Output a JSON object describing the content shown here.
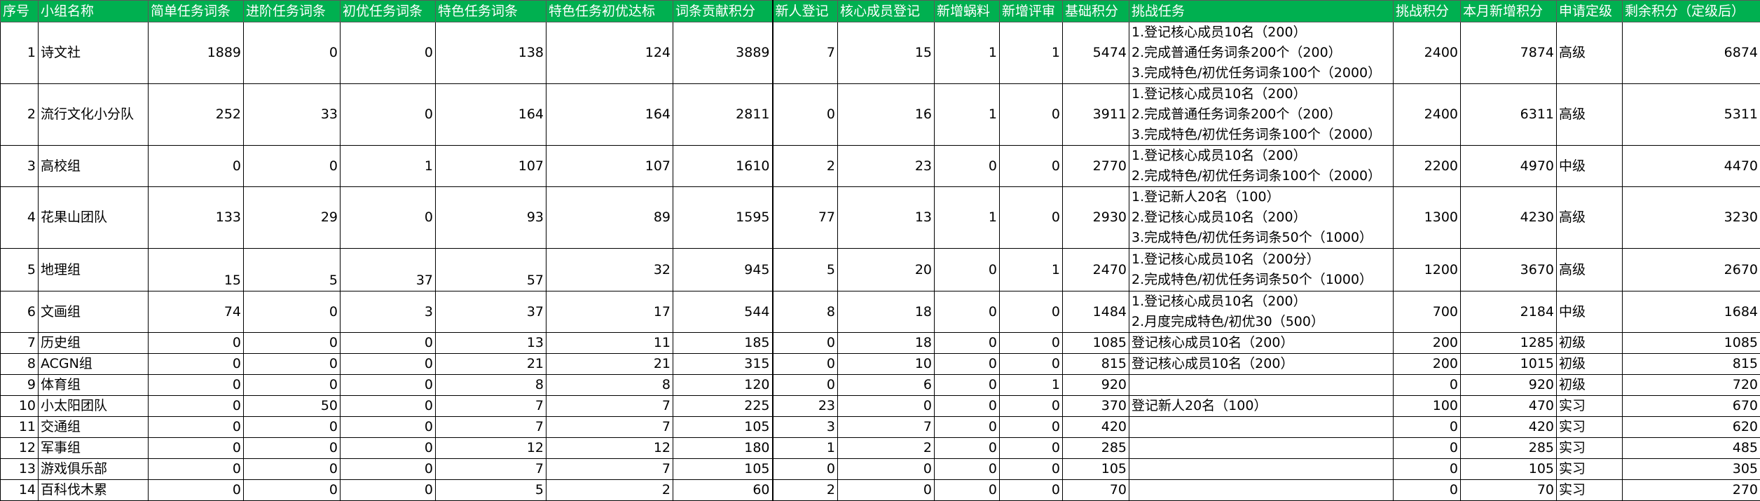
{
  "headers": [
    "序号",
    "小组名称",
    "简单任务词条",
    "进阶任务词条",
    "初优任务词条",
    "特色任务词条",
    "特色任务初优达标",
    "词条贡献积分",
    "新人登记",
    "核心成员登记",
    "新增蜗料",
    "新增评审",
    "基础积分",
    "挑战任务",
    "挑战积分",
    "本月新增积分",
    "申请定级",
    "剩余积分（定级后）"
  ],
  "rows": [
    {
      "no": "1",
      "name": "诗文社",
      "simple": "1889",
      "advanced": "0",
      "initial": "0",
      "special": "138",
      "special_ok": "124",
      "contrib": "3889",
      "newbie": "7",
      "core": "15",
      "snail": "1",
      "review": "1",
      "base": "5474",
      "tasks": [
        "1.登记核心成员10名（200）",
        "2.完成普通任务词条200个（200）",
        "3.完成特色/初优任务词条100个（2000）"
      ],
      "challenge": "2400",
      "month": "7874",
      "level": "高级",
      "remain": "6874"
    },
    {
      "no": "2",
      "name": "流行文化小分队",
      "simple": "252",
      "advanced": "33",
      "initial": "0",
      "special": "164",
      "special_ok": "164",
      "contrib": "2811",
      "newbie": "0",
      "core": "16",
      "snail": "1",
      "review": "0",
      "base": "3911",
      "tasks": [
        "1.登记核心成员10名（200）",
        "2.完成普通任务词条200个（200）",
        "3.完成特色/初优任务词条100个（2000）"
      ],
      "challenge": "2400",
      "month": "6311",
      "level": "高级",
      "remain": "5311"
    },
    {
      "no": "3",
      "name": "高校组",
      "simple": "0",
      "advanced": "0",
      "initial": "1",
      "special": "107",
      "special_ok": "107",
      "contrib": "1610",
      "newbie": "2",
      "core": "23",
      "snail": "0",
      "review": "0",
      "base": "2770",
      "tasks": [
        "1.登记核心成员10名（200）",
        "2.完成特色/初优任务词条100个（2000）"
      ],
      "challenge": "2200",
      "month": "4970",
      "level": "中级",
      "remain": "4470"
    },
    {
      "no": "4",
      "name": "花果山团队",
      "simple": "133",
      "advanced": "29",
      "initial": "0",
      "special": "93",
      "special_ok": "89",
      "contrib": "1595",
      "newbie": "77",
      "core": "13",
      "snail": "1",
      "review": "0",
      "base": "2930",
      "tasks": [
        "1.登记新人20名（100）",
        "2.登记核心成员10名（200）",
        "3.完成特色/初优任务词条50个（1000）"
      ],
      "challenge": "1300",
      "month": "4230",
      "level": "高级",
      "remain": "3230"
    },
    {
      "no": "5",
      "name": "地理组",
      "simple": "15",
      "advanced": "5",
      "initial": "37",
      "special": "57",
      "special_ok": "32",
      "contrib": "945",
      "newbie": "5",
      "core": "20",
      "snail": "0",
      "review": "1",
      "base": "2470",
      "tasks": [
        "1.登记核心成员10名（200分）",
        "2.完成特色/初优任务词条50个（1000）"
      ],
      "challenge": "1200",
      "month": "3670",
      "level": "高级",
      "remain": "2670"
    },
    {
      "no": "6",
      "name": "文画组",
      "simple": "74",
      "advanced": "0",
      "initial": "3",
      "special": "37",
      "special_ok": "17",
      "contrib": "544",
      "newbie": "8",
      "core": "18",
      "snail": "0",
      "review": "0",
      "base": "1484",
      "tasks": [
        "1.登记核心成员10名（200）",
        "2.月度完成特色/初优30（500）"
      ],
      "challenge": "700",
      "month": "2184",
      "level": "中级",
      "remain": "1684"
    },
    {
      "no": "7",
      "name": "历史组",
      "simple": "0",
      "advanced": "0",
      "initial": "0",
      "special": "13",
      "special_ok": "11",
      "contrib": "185",
      "newbie": "0",
      "core": "18",
      "snail": "0",
      "review": "0",
      "base": "1085",
      "tasks": [
        "登记核心成员10名（200）"
      ],
      "challenge": "200",
      "month": "1285",
      "level": "初级",
      "remain": "1085"
    },
    {
      "no": "8",
      "name": "ACGN组",
      "simple": "0",
      "advanced": "0",
      "initial": "0",
      "special": "21",
      "special_ok": "21",
      "contrib": "315",
      "newbie": "0",
      "core": "10",
      "snail": "0",
      "review": "0",
      "base": "815",
      "tasks": [
        "登记核心成员10名（200）"
      ],
      "challenge": "200",
      "month": "1015",
      "level": "初级",
      "remain": "815"
    },
    {
      "no": "9",
      "name": "体育组",
      "simple": "0",
      "advanced": "0",
      "initial": "0",
      "special": "8",
      "special_ok": "8",
      "contrib": "120",
      "newbie": "0",
      "core": "6",
      "snail": "0",
      "review": "1",
      "base": "920",
      "tasks": [],
      "challenge": "0",
      "month": "920",
      "level": "初级",
      "remain": "720"
    },
    {
      "no": "10",
      "name": "小太阳团队",
      "simple": "0",
      "advanced": "50",
      "initial": "0",
      "special": "7",
      "special_ok": "7",
      "contrib": "225",
      "newbie": "23",
      "core": "0",
      "snail": "0",
      "review": "0",
      "base": "370",
      "tasks": [
        "登记新人20名（100）"
      ],
      "challenge": "100",
      "month": "470",
      "level": "实习",
      "remain": "670"
    },
    {
      "no": "11",
      "name": "交通组",
      "simple": "0",
      "advanced": "0",
      "initial": "0",
      "special": "7",
      "special_ok": "7",
      "contrib": "105",
      "newbie": "3",
      "core": "7",
      "snail": "0",
      "review": "0",
      "base": "420",
      "tasks": [],
      "challenge": "0",
      "month": "420",
      "level": "实习",
      "remain": "620"
    },
    {
      "no": "12",
      "name": "军事组",
      "simple": "0",
      "advanced": "0",
      "initial": "0",
      "special": "12",
      "special_ok": "12",
      "contrib": "180",
      "newbie": "1",
      "core": "2",
      "snail": "0",
      "review": "0",
      "base": "285",
      "tasks": [],
      "challenge": "0",
      "month": "285",
      "level": "实习",
      "remain": "485"
    },
    {
      "no": "13",
      "name": "游戏俱乐部",
      "simple": "0",
      "advanced": "0",
      "initial": "0",
      "special": "7",
      "special_ok": "7",
      "contrib": "105",
      "newbie": "0",
      "core": "0",
      "snail": "0",
      "review": "0",
      "base": "105",
      "tasks": [],
      "challenge": "0",
      "month": "105",
      "level": "实习",
      "remain": "305"
    },
    {
      "no": "14",
      "name": "百科伐木累",
      "simple": "0",
      "advanced": "0",
      "initial": "0",
      "special": "5",
      "special_ok": "2",
      "contrib": "60",
      "newbie": "2",
      "core": "0",
      "snail": "0",
      "review": "0",
      "base": "70",
      "tasks": [],
      "challenge": "0",
      "month": "70",
      "level": "实习",
      "remain": "270"
    }
  ]
}
